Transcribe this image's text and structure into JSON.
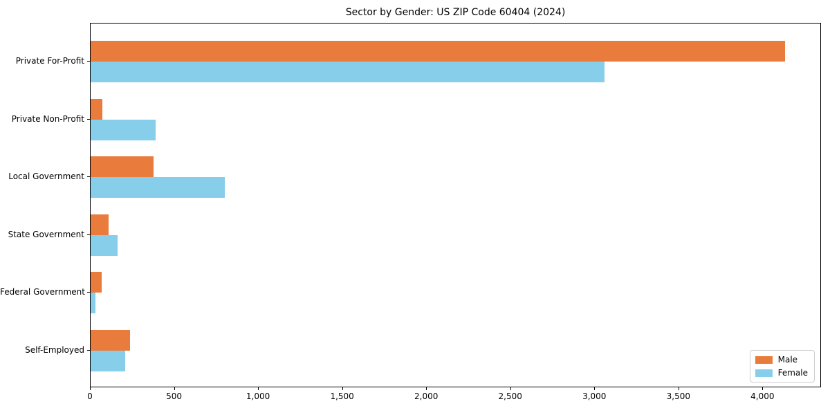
{
  "chart_data": {
    "type": "bar",
    "orientation": "horizontal",
    "title": "Sector by Gender: US ZIP Code 60404 (2024)",
    "categories": [
      "Private For-Profit",
      "Private Non-Profit",
      "Local Government",
      "State Government",
      "Federal Government",
      "Self-Employed"
    ],
    "series": [
      {
        "name": "Male",
        "color": "#E97C3C",
        "values": [
          4130,
          70,
          375,
          105,
          65,
          235
        ]
      },
      {
        "name": "Female",
        "color": "#87CEEB",
        "values": [
          3055,
          385,
          800,
          160,
          30,
          205
        ]
      }
    ],
    "xlim": [
      0,
      4340
    ],
    "xticks": [
      0,
      500,
      1000,
      1500,
      2000,
      2500,
      3000,
      3500,
      4000
    ],
    "xtick_labels": [
      "0",
      "500",
      "1,000",
      "1,500",
      "2,000",
      "2,500",
      "3,000",
      "3,500",
      "4,000"
    ],
    "xlabel": "",
    "ylabel": "",
    "grid": false,
    "legend_position": "lower right",
    "axis_color": "#000000",
    "background_color": "#ffffff"
  }
}
